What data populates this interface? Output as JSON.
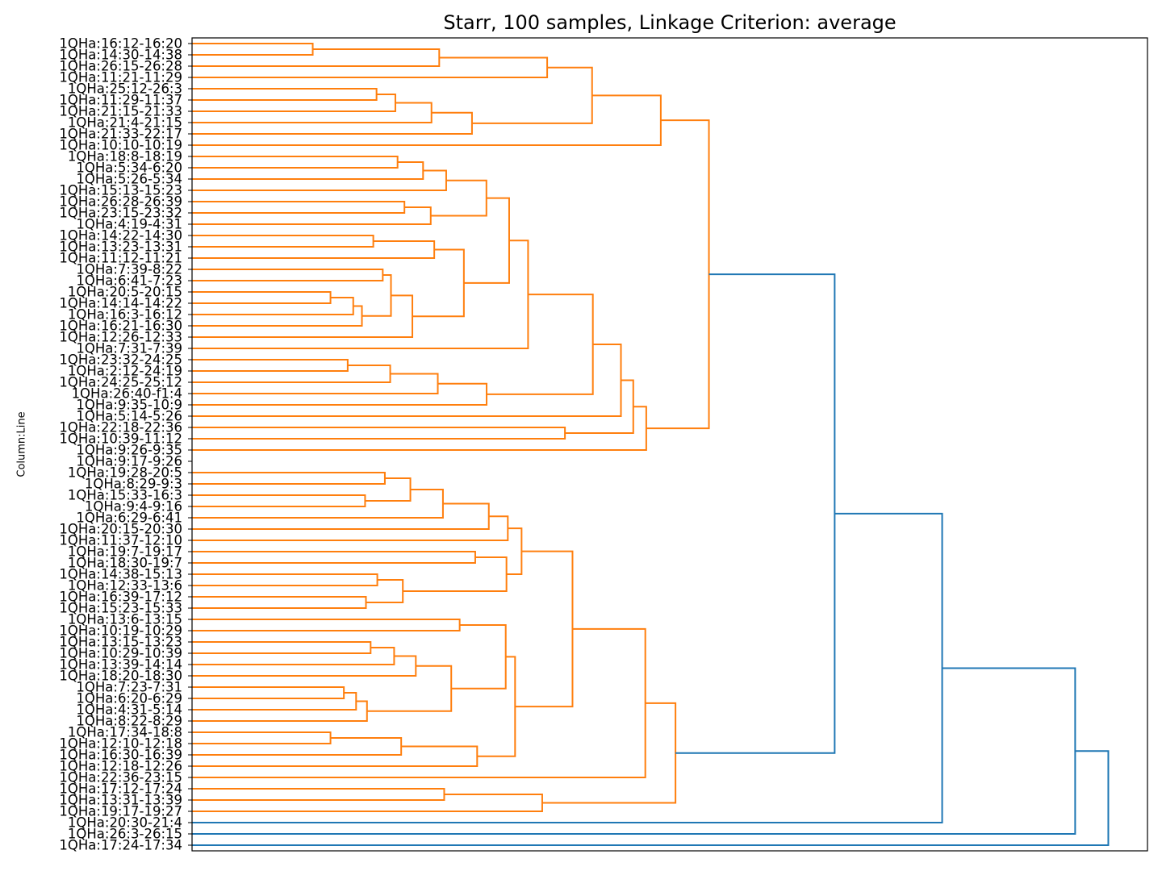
{
  "chart_data": {
    "type": "dendrogram",
    "orientation": "left",
    "title": "Starr, 100 samples, Linkage Criterion: average",
    "ylabel": "Column:Line",
    "xlabel": "",
    "colors": {
      "cluster": "#ff7f0e",
      "above_threshold": "#1f77b4"
    },
    "leaves": [
      "1QHa:16:12-16:20",
      "1QHa:14:30-14:38",
      "1QHa:26:15-26:28",
      "1QHa:11:21-11:29",
      "1QHa:25:12-26:3",
      "1QHa:11:29-11:37",
      "1QHa:21:15-21:33",
      "1QHa:21:4-21:15",
      "1QHa:21:33-22:17",
      "1QHa:10:10-10:19",
      "1QHa:18:8-18:19",
      "1QHa:5:34-6:20",
      "1QHa:5:26-5:34",
      "1QHa:15:13-15:23",
      "1QHa:26:28-26:39",
      "1QHa:23:15-23:32",
      "1QHa:4:19-4:31",
      "1QHa:14:22-14:30",
      "1QHa:13:23-13:31",
      "1QHa:11:12-11:21",
      "1QHa:7:39-8:22",
      "1QHa:6:41-7:23",
      "1QHa:20:5-20:15",
      "1QHa:14:14-14:22",
      "1QHa:16:3-16:12",
      "1QHa:16:21-16:30",
      "1QHa:12:26-12:33",
      "1QHa:7:31-7:39",
      "1QHa:23:32-24:25",
      "1QHa:2:12-24:19",
      "1QHa:24:25-25:12",
      "1QHa:26:40-f1:4",
      "1QHa:9:35-10:9",
      "1QHa:5:14-5:26",
      "1QHa:22:18-22:36",
      "1QHa:10:39-11:12",
      "1QHa:9:26-9:35",
      "1QHa:9:17-9:26",
      "1QHa:19:28-20:5",
      "1QHa:8:29-9:3",
      "1QHa:15:33-16:3",
      "1QHa:9:4-9:16",
      "1QHa:6:29-6:41",
      "1QHa:20:15-20:30",
      "1QHa:11:37-12:10",
      "1QHa:19:7-19:17",
      "1QHa:18:30-19:7",
      "1QHa:14:38-15:13",
      "1QHa:12:33-13:6",
      "1QHa:16:39-17:12",
      "1QHa:15:23-15:33",
      "1QHa:13:6-13:15",
      "1QHa:10:19-10:29",
      "1QHa:13:15-13:23",
      "1QHa:10:29-10:39",
      "1QHa:13:39-14:14",
      "1QHa:18:20-18:30",
      "1QHa:7:23-7:31",
      "1QHa:6:20-6:29",
      "1QHa:4:31-5:14",
      "1QHa:8:22-8:29",
      "1QHa:17:34-18:8",
      "1QHa:12:10-12:18",
      "1QHa:16:30-16:39",
      "1QHa:12:18-12:26",
      "1QHa:22:36-23:15",
      "1QHa:17:12-17:24",
      "1QHa:13:31-13:39",
      "1QHa:19:17-19:27",
      "1QHa:20:30-21:4",
      "1QHa:26:3-26:15",
      "1QHa:17:24-17:34"
    ],
    "links": [
      {
        "leaf_a": 0,
        "leaf_b": 1,
        "height": 0.1263
      },
      {
        "leaf_a": 0,
        "leaf_b": 2,
        "height": 0.2587
      },
      {
        "leaf_a": 0,
        "leaf_b": 3,
        "height": 0.3717
      },
      {
        "leaf_a": 4,
        "leaf_b": 5,
        "height": 0.1931
      },
      {
        "leaf_a": 4,
        "leaf_b": 6,
        "height": 0.2128
      },
      {
        "leaf_a": 4,
        "leaf_b": 7,
        "height": 0.2506
      },
      {
        "leaf_a": 4,
        "leaf_b": 8,
        "height": 0.293
      },
      {
        "leaf_a": 0,
        "leaf_b": 4,
        "height": 0.4187
      },
      {
        "leaf_a": 0,
        "leaf_b": 9,
        "height": 0.4906
      },
      {
        "leaf_a": 10,
        "leaf_b": 11,
        "height": 0.2151
      },
      {
        "leaf_a": 10,
        "leaf_b": 12,
        "height": 0.2418
      },
      {
        "leaf_a": 10,
        "leaf_b": 13,
        "height": 0.266
      },
      {
        "leaf_a": 14,
        "leaf_b": 15,
        "height": 0.2223
      },
      {
        "leaf_a": 14,
        "leaf_b": 16,
        "height": 0.2498
      },
      {
        "leaf_a": 10,
        "leaf_b": 14,
        "height": 0.3081
      },
      {
        "leaf_a": 17,
        "leaf_b": 18,
        "height": 0.1897
      },
      {
        "leaf_a": 17,
        "leaf_b": 19,
        "height": 0.2535
      },
      {
        "leaf_a": 20,
        "leaf_b": 21,
        "height": 0.1996
      },
      {
        "leaf_a": 22,
        "leaf_b": 23,
        "height": 0.1449
      },
      {
        "leaf_a": 22,
        "leaf_b": 24,
        "height": 0.1687
      },
      {
        "leaf_a": 22,
        "leaf_b": 25,
        "height": 0.1778
      },
      {
        "leaf_a": 20,
        "leaf_b": 22,
        "height": 0.2082
      },
      {
        "leaf_a": 20,
        "leaf_b": 26,
        "height": 0.2306
      },
      {
        "leaf_a": 17,
        "leaf_b": 20,
        "height": 0.2845
      },
      {
        "leaf_a": 10,
        "leaf_b": 17,
        "height": 0.3319
      },
      {
        "leaf_a": 10,
        "leaf_b": 27,
        "height": 0.3517
      },
      {
        "leaf_a": 28,
        "leaf_b": 29,
        "height": 0.1629
      },
      {
        "leaf_a": 28,
        "leaf_b": 30,
        "height": 0.2074
      },
      {
        "leaf_a": 28,
        "leaf_b": 31,
        "height": 0.2572
      },
      {
        "leaf_a": 28,
        "leaf_b": 32,
        "height": 0.3083
      },
      {
        "leaf_a": 10,
        "leaf_b": 28,
        "height": 0.4195
      },
      {
        "leaf_a": 10,
        "leaf_b": 33,
        "height": 0.4489
      },
      {
        "leaf_a": 34,
        "leaf_b": 35,
        "height": 0.3903
      },
      {
        "leaf_a": 10,
        "leaf_b": 34,
        "height": 0.4618
      },
      {
        "leaf_a": 10,
        "leaf_b": 36,
        "height": 0.4754
      },
      {
        "leaf_a": 0,
        "leaf_b": 10,
        "height": 0.541
      },
      {
        "leaf_a": 38,
        "leaf_b": 39,
        "height": 0.2018
      },
      {
        "leaf_a": 40,
        "leaf_b": 41,
        "height": 0.1811
      },
      {
        "leaf_a": 38,
        "leaf_b": 40,
        "height": 0.2285
      },
      {
        "leaf_a": 38,
        "leaf_b": 42,
        "height": 0.2626
      },
      {
        "leaf_a": 38,
        "leaf_b": 43,
        "height": 0.3106
      },
      {
        "leaf_a": 38,
        "leaf_b": 44,
        "height": 0.3305
      },
      {
        "leaf_a": 45,
        "leaf_b": 46,
        "height": 0.2964
      },
      {
        "leaf_a": 47,
        "leaf_b": 48,
        "height": 0.1939
      },
      {
        "leaf_a": 49,
        "leaf_b": 50,
        "height": 0.182
      },
      {
        "leaf_a": 47,
        "leaf_b": 49,
        "height": 0.2206
      },
      {
        "leaf_a": 45,
        "leaf_b": 47,
        "height": 0.3291
      },
      {
        "leaf_a": 38,
        "leaf_b": 45,
        "height": 0.3449
      },
      {
        "leaf_a": 51,
        "leaf_b": 52,
        "height": 0.2801
      },
      {
        "leaf_a": 53,
        "leaf_b": 54,
        "height": 0.1869
      },
      {
        "leaf_a": 53,
        "leaf_b": 55,
        "height": 0.2115
      },
      {
        "leaf_a": 53,
        "leaf_b": 56,
        "height": 0.2342
      },
      {
        "leaf_a": 57,
        "leaf_b": 58,
        "height": 0.1589
      },
      {
        "leaf_a": 57,
        "leaf_b": 59,
        "height": 0.1717
      },
      {
        "leaf_a": 57,
        "leaf_b": 60,
        "height": 0.1831
      },
      {
        "leaf_a": 53,
        "leaf_b": 57,
        "height": 0.2713
      },
      {
        "leaf_a": 51,
        "leaf_b": 53,
        "height": 0.3283
      },
      {
        "leaf_a": 61,
        "leaf_b": 62,
        "height": 0.1449
      },
      {
        "leaf_a": 61,
        "leaf_b": 63,
        "height": 0.2189
      },
      {
        "leaf_a": 61,
        "leaf_b": 64,
        "height": 0.2984
      },
      {
        "leaf_a": 51,
        "leaf_b": 61,
        "height": 0.3381
      },
      {
        "leaf_a": 38,
        "leaf_b": 51,
        "height": 0.3982
      },
      {
        "leaf_a": 38,
        "leaf_b": 65,
        "height": 0.4744
      },
      {
        "leaf_a": 66,
        "leaf_b": 67,
        "height": 0.2639
      },
      {
        "leaf_a": 66,
        "leaf_b": 68,
        "height": 0.3665
      },
      {
        "leaf_a": 38,
        "leaf_b": 66,
        "height": 0.506
      },
      {
        "leaf_a": 0,
        "leaf_b": 38,
        "height": 0.6726
      },
      {
        "leaf_a": 0,
        "leaf_b": 69,
        "height": 0.7851
      },
      {
        "leaf_a": 0,
        "leaf_b": 70,
        "height": 0.9243
      },
      {
        "leaf_a": 0,
        "leaf_b": 71,
        "height": 0.959
      }
    ]
  }
}
